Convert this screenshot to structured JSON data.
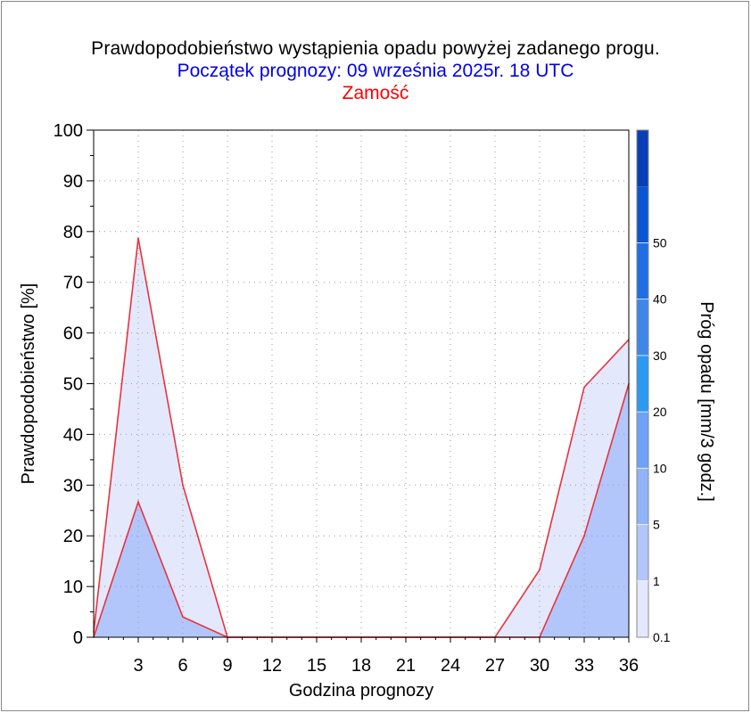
{
  "title": "Prawdopodobieństwo wystąpienia opadu powyżej zadanego progu.",
  "subtitle": "Początek prognozy: 09 września 2025r. 18 UTC",
  "station": "Zamość",
  "colors": {
    "title": "#000000",
    "subtitle": "#0000ee",
    "station": "#ff0000",
    "line": "#e8333c",
    "grid": "#9a9a9a"
  },
  "chart_data": {
    "type": "area",
    "title": "Prawdopodobieństwo wystąpienia opadu powyżej zadanego progu.",
    "xlabel": "Godzina prognozy",
    "ylabel": "Prawdopodobieństwo [%]",
    "xlim": [
      0,
      36
    ],
    "ylim": [
      0,
      100
    ],
    "xticks": [
      3,
      6,
      9,
      12,
      15,
      18,
      21,
      24,
      27,
      30,
      33,
      36
    ],
    "xtick_labels": [
      "3",
      "6",
      "9",
      "12",
      "15",
      "18",
      "21",
      "24",
      "27",
      "30",
      "33",
      "36"
    ],
    "yticks": [
      0,
      10,
      20,
      30,
      40,
      50,
      60,
      70,
      80,
      90,
      100
    ],
    "ytick_labels": [
      "0",
      "10",
      "20",
      "30",
      "40",
      "50",
      "60",
      "70",
      "80",
      "90",
      "100"
    ],
    "grid": true,
    "x": [
      0,
      3,
      6,
      9,
      12,
      15,
      18,
      21,
      24,
      27,
      30,
      33,
      36
    ],
    "series": [
      {
        "threshold": "0.1",
        "color": "#e3e8fd",
        "values": [
          1,
          78.7,
          30,
          0,
          0,
          0,
          0,
          0,
          0,
          0,
          13.3,
          49.3,
          58.7
        ]
      },
      {
        "threshold": "1",
        "color": "#b3c6fb",
        "values": [
          0,
          26.7,
          4,
          0,
          0,
          0,
          0,
          0,
          0,
          0,
          0,
          20,
          50
        ]
      }
    ],
    "colorbar": {
      "label": "Próg opadu [mm/3 godz.]",
      "labels": [
        "0.1",
        "1",
        "5",
        "10",
        "20",
        "30",
        "40",
        "50"
      ],
      "bands": [
        {
          "from": "0.1",
          "color": "#e3e8fd"
        },
        {
          "from": "1",
          "color": "#b3c6fb"
        },
        {
          "from": "5",
          "color": "#8fb4f8"
        },
        {
          "from": "10",
          "color": "#6fa2f6"
        },
        {
          "from": "20",
          "color": "#2b9af2"
        },
        {
          "from": "30",
          "color": "#3f86e9"
        },
        {
          "from": "40",
          "color": "#1f6ee3"
        },
        {
          "from": "50",
          "color": "#0a55d2"
        },
        {
          "from": "",
          "color": "#0a3eb6"
        }
      ]
    }
  }
}
